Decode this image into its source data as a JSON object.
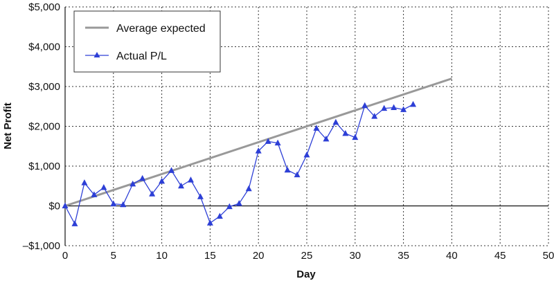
{
  "chart_data": {
    "type": "line",
    "xlabel": "Day",
    "ylabel": "Net Profit",
    "xlim": [
      0,
      50
    ],
    "ylim": [
      -1000,
      5000
    ],
    "xticks": [
      0,
      5,
      10,
      15,
      20,
      25,
      30,
      35,
      40,
      45,
      50
    ],
    "yticks": [
      -1000,
      0,
      1000,
      2000,
      3000,
      4000,
      5000
    ],
    "ytick_labels": [
      "–$1,000",
      "$0",
      "$1,000",
      "$2,000",
      "$3,000",
      "$4,000",
      "$5,000"
    ],
    "grid": true,
    "legend_position": "top-left",
    "series": [
      {
        "name": "Average expected",
        "color": "#999999",
        "marker": "none",
        "x": [
          0,
          40
        ],
        "y": [
          0,
          3200
        ]
      },
      {
        "name": "Actual P/L",
        "color": "#2d3fd6",
        "marker": "triangle",
        "x": [
          0,
          1,
          2,
          3,
          4,
          5,
          6,
          7,
          8,
          9,
          10,
          11,
          12,
          13,
          14,
          15,
          16,
          17,
          18,
          19,
          20,
          21,
          22,
          23,
          24,
          25,
          26,
          27,
          28,
          29,
          30,
          31,
          32,
          33,
          34,
          35,
          36
        ],
        "y": [
          0,
          -450,
          580,
          280,
          460,
          50,
          30,
          550,
          690,
          300,
          620,
          890,
          500,
          650,
          230,
          -430,
          -260,
          -20,
          60,
          430,
          1380,
          1620,
          1580,
          900,
          780,
          1280,
          1950,
          1680,
          2100,
          1820,
          1720,
          2520,
          2250,
          2450,
          2470,
          2420,
          2550
        ]
      }
    ]
  }
}
